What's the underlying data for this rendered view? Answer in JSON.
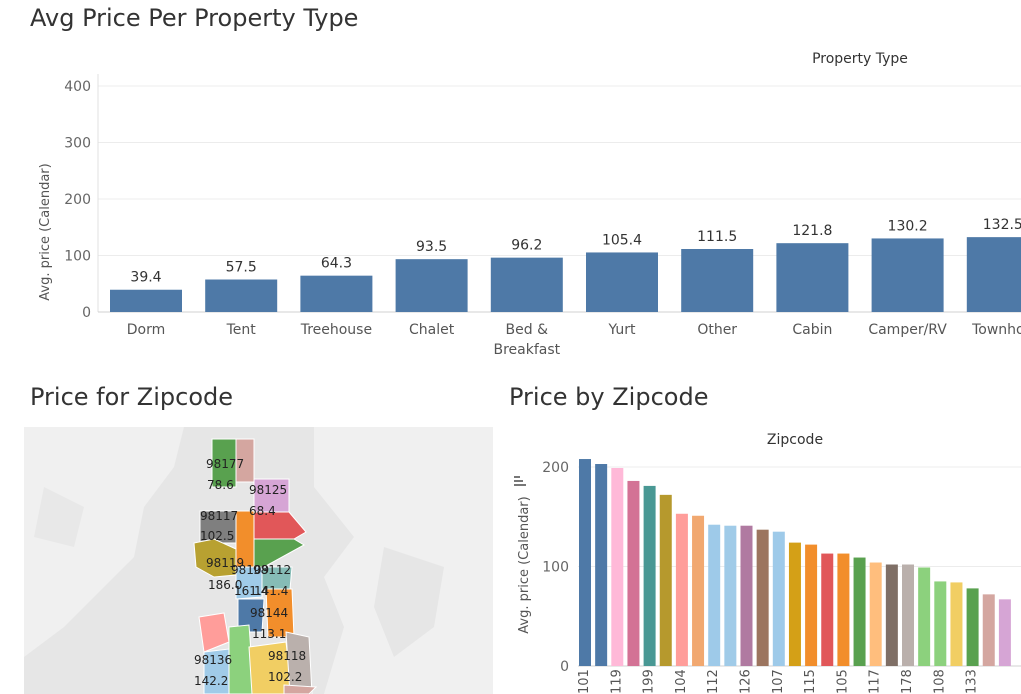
{
  "dashboard": {
    "title1": "Avg Price Per Property Type",
    "title2": "Price for Zipcode",
    "title3": "Price by Zipcode"
  },
  "chart_data": [
    {
      "type": "bar",
      "header": "Property Type",
      "ylabel": "Avg. price (Calendar)",
      "ylim": [
        0,
        400
      ],
      "yticks": [
        "0",
        "100",
        "200",
        "300",
        "400"
      ],
      "categories": [
        "Dorm",
        "Tent",
        "Treehouse",
        "Chalet",
        "Bed & Breakfast",
        "Yurt",
        "Other",
        "Cabin",
        "Camper/RV",
        "Townhou"
      ],
      "values": [
        39.4,
        57.5,
        64.3,
        93.5,
        96.2,
        105.4,
        111.5,
        121.8,
        130.2,
        132.5
      ],
      "labels": [
        "39.4",
        "57.5",
        "64.3",
        "93.5",
        "96.2",
        "105.4",
        "111.5",
        "121.8",
        "130.2",
        "132.5"
      ],
      "color": "#4e79a7"
    },
    {
      "type": "map",
      "labels": [
        {
          "text": "98177"
        },
        {
          "text": "78.6"
        },
        {
          "text": "98125"
        },
        {
          "text": "98117"
        },
        {
          "text": "68.4"
        },
        {
          "text": "102.5"
        },
        {
          "text": "98119"
        },
        {
          "text": "98109"
        },
        {
          "text": "98112"
        },
        {
          "text": "186.0"
        },
        {
          "text": "161.4"
        },
        {
          "text": "141.4"
        },
        {
          "text": "98144"
        },
        {
          "text": "113.1"
        },
        {
          "text": "98136"
        },
        {
          "text": "98118"
        },
        {
          "text": "142.2"
        },
        {
          "text": "102.2"
        }
      ],
      "region_colors": [
        "#59a14f",
        "#d4a6a0",
        "#d6a5d5",
        "#7f7f7f",
        "#e15759",
        "#f28e2b",
        "#b8a131",
        "#59a14f",
        "#86bcb6",
        "#a0cbe8",
        "#4e79a7",
        "#f28e2b",
        "#ff9d9a",
        "#a0cbe8",
        "#8cd17d",
        "#f1ce63",
        "#bab0ac",
        "#d4a6a0"
      ]
    },
    {
      "type": "bar",
      "header": "Zipcode",
      "ylabel": "Avg. price (Calendar)",
      "ylim": [
        0,
        210
      ],
      "yticks": [
        "0",
        "100",
        "200"
      ],
      "values": [
        208,
        203,
        199,
        186,
        181,
        172,
        153,
        151,
        142,
        141,
        141,
        137,
        135,
        124,
        122,
        113,
        113,
        109,
        104,
        102,
        102,
        99,
        85,
        84,
        78,
        72,
        67
      ],
      "xticks": [
        "101",
        "119",
        "199",
        "104",
        "112",
        "126",
        "107",
        "115",
        "105",
        "117",
        "178",
        "108",
        "133"
      ],
      "colors": [
        "#4e79a7",
        "#4e79a7",
        "#ffb9d8",
        "#d37295",
        "#499894",
        "#b6992d",
        "#ff9d9a",
        "#f1a870",
        "#9ecae9",
        "#a0cbe8",
        "#b07aa1",
        "#9c755f",
        "#9ecae9",
        "#d4a017",
        "#f28e2b",
        "#e15759",
        "#f28e2b",
        "#59a14f",
        "#ffbe7d",
        "#7f6f66",
        "#bab0ac",
        "#8cd17d",
        "#8cd17d",
        "#f1ce63",
        "#59a14f",
        "#d4a6a0",
        "#d6a5d5"
      ]
    }
  ]
}
